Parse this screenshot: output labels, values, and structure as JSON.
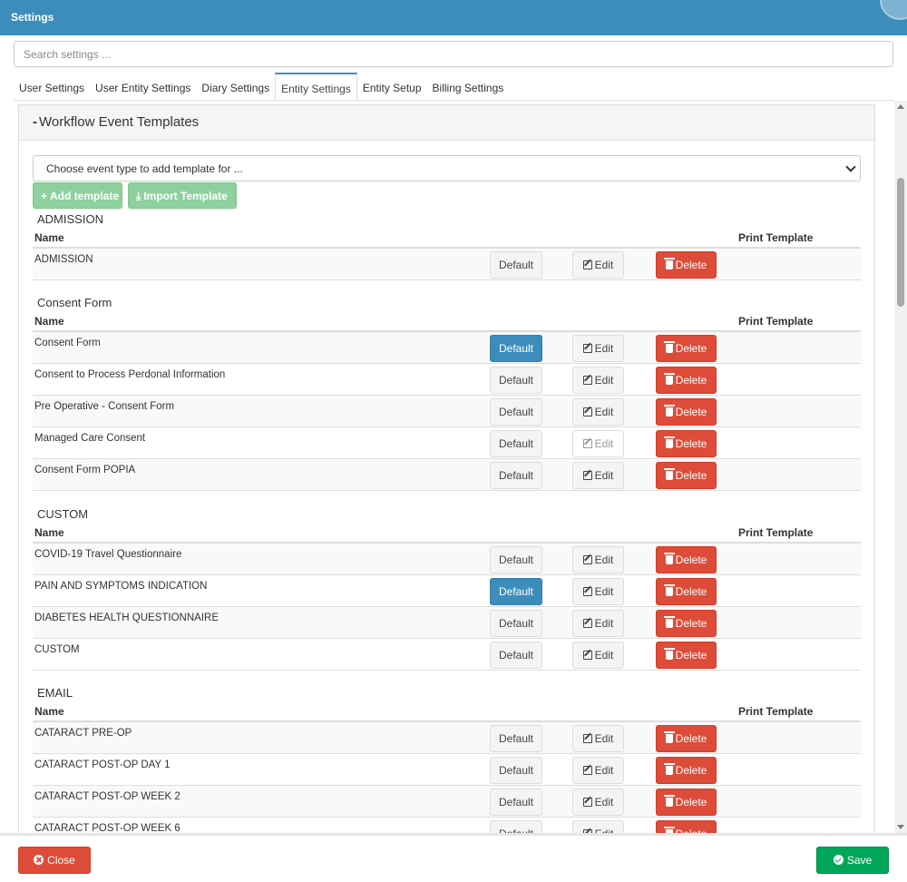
{
  "window": {
    "title": "Settings"
  },
  "search": {
    "placeholder": "Search settings ..."
  },
  "tabs": [
    {
      "label": "User Settings",
      "active": false
    },
    {
      "label": "User Entity Settings",
      "active": false
    },
    {
      "label": "Diary Settings",
      "active": false
    },
    {
      "label": "Entity Settings",
      "active": true
    },
    {
      "label": "Entity Setup",
      "active": false
    },
    {
      "label": "Billing Settings",
      "active": false
    }
  ],
  "panel": {
    "collapse_symbol": "-",
    "title": "Workflow Event Templates",
    "event_type_select": "Choose event type to add template for ...",
    "add_template_label": "Add template",
    "import_template_label": "Import Template"
  },
  "columns": {
    "name": "Name",
    "print": "Print Template"
  },
  "buttons": {
    "default": "Default",
    "edit": "Edit",
    "delete": "Delete"
  },
  "groups": [
    {
      "title": "ADMISSION",
      "rows": [
        {
          "name": "ADMISSION",
          "is_default": false,
          "edit_disabled": false
        }
      ]
    },
    {
      "title": "Consent Form",
      "rows": [
        {
          "name": "Consent Form",
          "is_default": true,
          "edit_disabled": false
        },
        {
          "name": "Consent to Process Perdonal Information",
          "is_default": false,
          "edit_disabled": false
        },
        {
          "name": "Pre Operative - Consent Form",
          "is_default": false,
          "edit_disabled": false
        },
        {
          "name": "Managed Care Consent",
          "is_default": false,
          "edit_disabled": true
        },
        {
          "name": "Consent Form POPIA",
          "is_default": false,
          "edit_disabled": false
        }
      ]
    },
    {
      "title": "CUSTOM",
      "rows": [
        {
          "name": "COVID-19 Travel Questionnaire",
          "is_default": false,
          "edit_disabled": false
        },
        {
          "name": "PAIN AND SYMPTOMS INDICATION",
          "is_default": true,
          "edit_disabled": false
        },
        {
          "name": "DIABETES HEALTH QUESTIONNAIRE",
          "is_default": false,
          "edit_disabled": false
        },
        {
          "name": "CUSTOM",
          "is_default": false,
          "edit_disabled": false
        }
      ]
    },
    {
      "title": "EMAIL",
      "rows": [
        {
          "name": "CATARACT PRE-OP",
          "is_default": false,
          "edit_disabled": false
        },
        {
          "name": "CATARACT POST-OP DAY 1",
          "is_default": false,
          "edit_disabled": false
        },
        {
          "name": "CATARACT POST-OP WEEK 2",
          "is_default": false,
          "edit_disabled": false
        },
        {
          "name": "CATARACT POST-OP WEEK 6",
          "is_default": false,
          "edit_disabled": false
        }
      ]
    }
  ],
  "footer": {
    "close_label": "Close",
    "save_label": "Save"
  },
  "colors": {
    "header": "#3c8dbc",
    "primary": "#3c8dbc",
    "danger": "#dd4b39",
    "success": "#00a65a",
    "add": "#8fd19e"
  }
}
